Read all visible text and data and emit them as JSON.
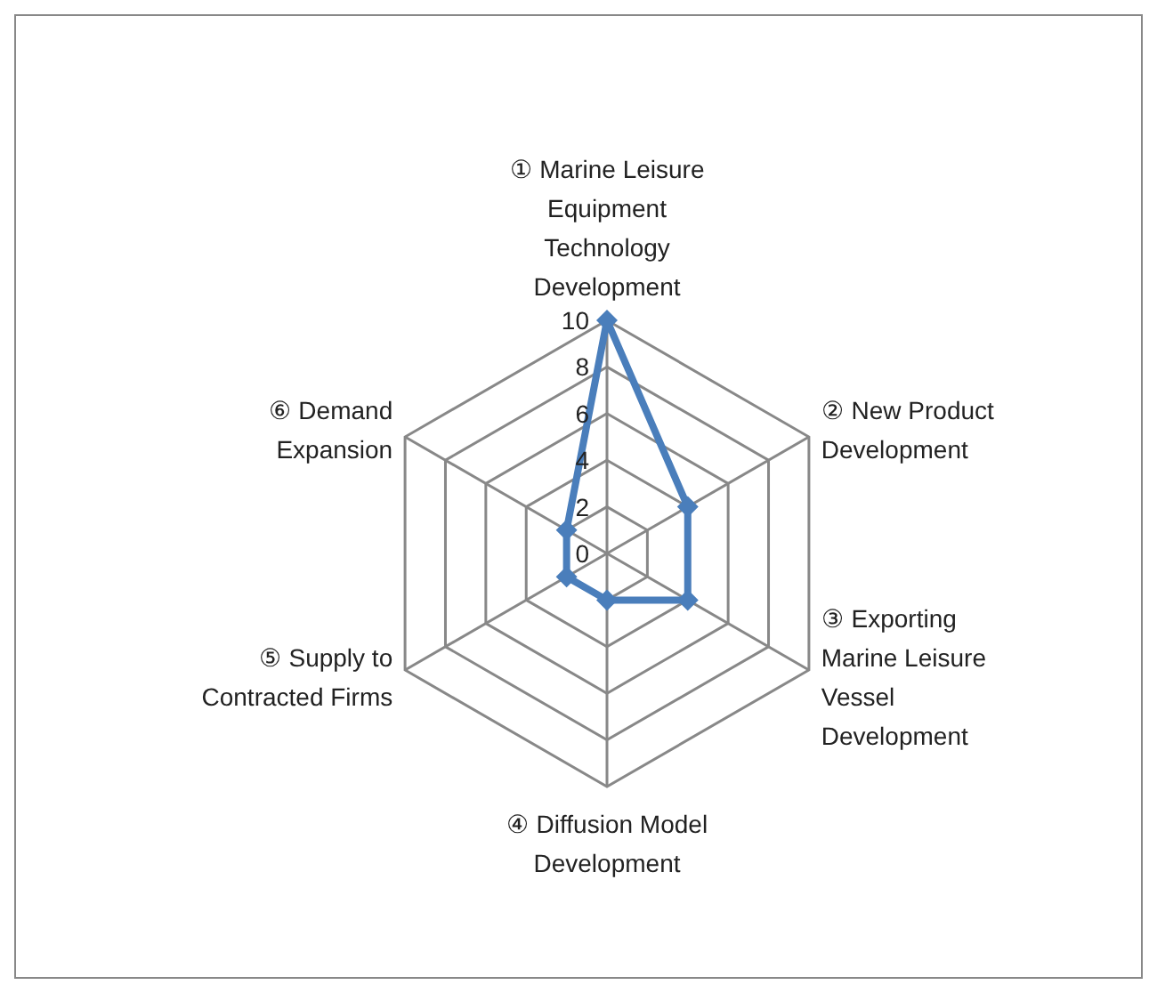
{
  "chart_data": {
    "type": "radar",
    "categories": [
      "① Marine Leisure Equipment Technology Development",
      "② New Product Development",
      "③ Exporting Marine Leisure Vessel Development",
      "④ Diffusion Model Development",
      "⑤ Supply to Contracted Firms",
      "⑥ Demand Expansion"
    ],
    "series": [
      {
        "color": "#4a7ebb",
        "values": [
          10,
          4,
          4,
          2,
          2,
          2
        ]
      }
    ],
    "ylim": [
      0,
      10
    ],
    "yticks": [
      0,
      2,
      4,
      6,
      8,
      10
    ],
    "grid": true,
    "legend": false,
    "marker": "diamond",
    "line_style": "solid"
  }
}
